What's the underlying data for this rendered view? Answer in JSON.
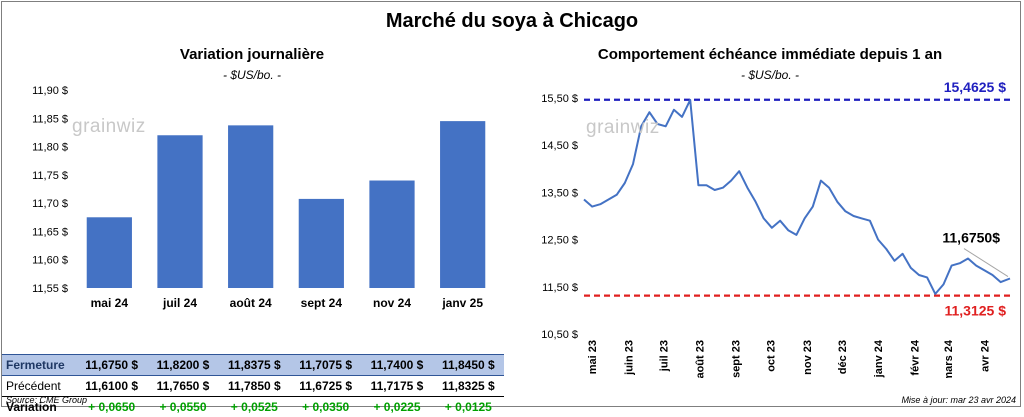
{
  "title": "Marché du soya à Chicago",
  "left": {
    "subtitle": "Variation journalière",
    "unit": "- $US/bo. -",
    "watermark": "grainwiz"
  },
  "right": {
    "subtitle": "Comportement échéance immédiate depuis 1 an",
    "unit": "- $US/bo. -",
    "watermark": "grainwiz",
    "max_label": "15,4625 $",
    "min_label": "11,3125 $",
    "last_label": "11,6750$"
  },
  "table": {
    "rows": [
      {
        "label": "Fermeture",
        "values": [
          "11,6750 $",
          "11,8200 $",
          "11,8375 $",
          "11,7075 $",
          "11,7400 $",
          "11,8450 $"
        ]
      },
      {
        "label": "Précédent",
        "values": [
          "11,6100 $",
          "11,7650 $",
          "11,7850 $",
          "11,6725 $",
          "11,7175 $",
          "11,8325 $"
        ]
      },
      {
        "label": "Variation",
        "values": [
          "+ 0,0650",
          "+ 0,0550",
          "+ 0,0525",
          "+ 0,0350",
          "+ 0,0225",
          "+ 0,0125"
        ]
      }
    ]
  },
  "footer": {
    "source": "Source: CME Group",
    "updated": "Mise à jour: mar 23 avr 2024"
  },
  "colors": {
    "bar": "#4472c4",
    "line": "#4472c4",
    "max_line": "#1f1fbf",
    "min_line": "#e02020",
    "positive": "#00a000"
  },
  "chart_data": [
    {
      "type": "bar",
      "title": "Variation journalière",
      "subtitle": "- $US/bo. -",
      "categories": [
        "mai 24",
        "juil 24",
        "août 24",
        "sept 24",
        "nov 24",
        "janv 25"
      ],
      "values": [
        11.675,
        11.82,
        11.8375,
        11.7075,
        11.74,
        11.845
      ],
      "ylim": [
        11.55,
        11.9
      ],
      "yticks": [
        11.55,
        11.6,
        11.65,
        11.7,
        11.75,
        11.8,
        11.85,
        11.9
      ],
      "ytick_labels": [
        "11,55 $",
        "11,60 $",
        "11,65 $",
        "11,70 $",
        "11,75 $",
        "11,80 $",
        "11,85 $",
        "11,90 $"
      ],
      "grid": false
    },
    {
      "type": "line",
      "title": "Comportement échéance immédiate depuis 1 an",
      "subtitle": "- $US/bo. -",
      "x": [
        "2023-04-24",
        "2023-05-01",
        "2023-05-08",
        "2023-05-15",
        "2023-05-22",
        "2023-05-29",
        "2023-06-05",
        "2023-06-12",
        "2023-06-19",
        "2023-06-26",
        "2023-07-03",
        "2023-07-10",
        "2023-07-17",
        "2023-07-24",
        "2023-07-31",
        "2023-08-07",
        "2023-08-14",
        "2023-08-21",
        "2023-08-28",
        "2023-09-04",
        "2023-09-11",
        "2023-09-18",
        "2023-09-25",
        "2023-10-02",
        "2023-10-09",
        "2023-10-16",
        "2023-10-23",
        "2023-10-30",
        "2023-11-06",
        "2023-11-13",
        "2023-11-20",
        "2023-11-27",
        "2023-12-04",
        "2023-12-11",
        "2023-12-18",
        "2023-12-25",
        "2024-01-01",
        "2024-01-08",
        "2024-01-15",
        "2024-01-22",
        "2024-01-29",
        "2024-02-05",
        "2024-02-12",
        "2024-02-19",
        "2024-02-26",
        "2024-03-04",
        "2024-03-11",
        "2024-03-18",
        "2024-03-25",
        "2024-04-01",
        "2024-04-08",
        "2024-04-15",
        "2024-04-23"
      ],
      "values": [
        13.35,
        13.2,
        13.25,
        13.35,
        13.45,
        13.7,
        14.1,
        14.9,
        15.2,
        14.95,
        14.9,
        15.25,
        15.1,
        15.46,
        13.65,
        13.65,
        13.55,
        13.6,
        13.75,
        13.95,
        13.6,
        13.3,
        12.95,
        12.75,
        12.9,
        12.7,
        12.6,
        12.95,
        13.2,
        13.75,
        13.6,
        13.3,
        13.1,
        13.0,
        12.95,
        12.9,
        12.5,
        12.3,
        12.05,
        12.2,
        11.9,
        11.75,
        11.7,
        11.35,
        11.55,
        11.95,
        12.0,
        12.1,
        11.95,
        11.85,
        11.75,
        11.6,
        11.675
      ],
      "xtick_labels": [
        "mai 23",
        "juin 23",
        "juil 23",
        "août 23",
        "sept 23",
        "oct 23",
        "nov 23",
        "déc 23",
        "janv 24",
        "févr 24",
        "mars 24",
        "avr 24"
      ],
      "ylim": [
        10.5,
        15.5
      ],
      "yticks": [
        10.5,
        11.5,
        12.5,
        13.5,
        14.5,
        15.5
      ],
      "ytick_labels": [
        "10,50 $",
        "11,50 $",
        "12,50 $",
        "13,50 $",
        "14,50 $",
        "15,50 $"
      ],
      "max_value": 15.4625,
      "min_value": 11.3125,
      "last_value": 11.675,
      "grid": false
    }
  ]
}
